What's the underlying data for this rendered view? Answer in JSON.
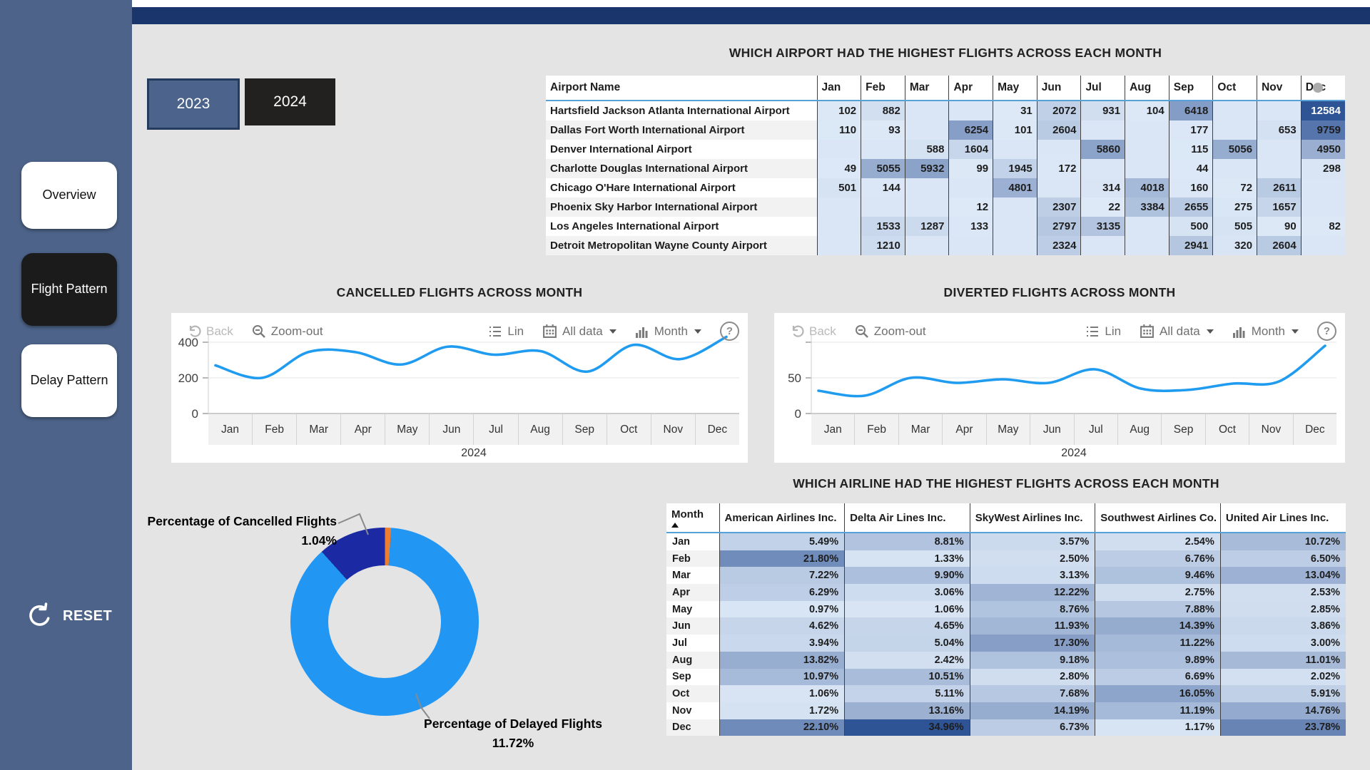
{
  "sidebar": {
    "items": [
      {
        "label": "Overview",
        "selected": false
      },
      {
        "label": "Flight Pattern",
        "selected": true
      },
      {
        "label": "Delay Pattern",
        "selected": false
      }
    ],
    "reset_label": "RESET"
  },
  "filters": {
    "years": [
      "2023",
      "2024"
    ],
    "selected_year": "2023"
  },
  "toolbar": {
    "back": "Back",
    "zoom_out": "Zoom-out",
    "lin": "Lin",
    "all_data": "All data",
    "month": "Month",
    "help": "?"
  },
  "colors": {
    "sidebar": "#4d6389",
    "top_strip": "#1a356b",
    "accent_header_line": "#57a1d9",
    "line": "#1f9bf0",
    "heat_light": "#dde9f7",
    "heat_dark": "#2f5496",
    "donut_main": "#2196f3",
    "donut_delayed": "#1b2aa3",
    "donut_cancelled": "#ed7d31"
  },
  "airport_table": {
    "title": "WHICH AIRPORT HAD THE HIGHEST FLIGHTS ACROSS EACH MONTH",
    "name_header": "Airport Name",
    "months": [
      "Jan",
      "Feb",
      "Mar",
      "Apr",
      "May",
      "Jun",
      "Jul",
      "Aug",
      "Sep",
      "Oct",
      "Nov",
      "Dec"
    ],
    "rows": [
      {
        "name": "Hartsfield Jackson Atlanta International Airport",
        "values": [
          102,
          882,
          null,
          null,
          31,
          2072,
          931,
          104,
          6418,
          null,
          null,
          12584
        ]
      },
      {
        "name": "Dallas Fort Worth International Airport",
        "values": [
          110,
          93,
          null,
          6254,
          101,
          2604,
          null,
          null,
          177,
          null,
          653,
          9759
        ]
      },
      {
        "name": "Denver International Airport",
        "values": [
          null,
          null,
          588,
          1604,
          null,
          null,
          5860,
          null,
          115,
          5056,
          null,
          4950
        ]
      },
      {
        "name": "Charlotte Douglas International Airport",
        "values": [
          49,
          5055,
          5932,
          99,
          1945,
          172,
          null,
          null,
          44,
          null,
          null,
          298
        ]
      },
      {
        "name": "Chicago O'Hare International Airport",
        "values": [
          501,
          144,
          null,
          null,
          4801,
          null,
          314,
          4018,
          160,
          72,
          2611,
          null
        ]
      },
      {
        "name": "Phoenix Sky Harbor International Airport",
        "values": [
          null,
          null,
          null,
          12,
          null,
          2307,
          22,
          3384,
          2655,
          275,
          1657,
          null
        ]
      },
      {
        "name": "Los Angeles International Airport",
        "values": [
          null,
          1533,
          1287,
          133,
          null,
          2797,
          3135,
          null,
          500,
          505,
          90,
          82
        ]
      },
      {
        "name": "Detroit Metropolitan Wayne County Airport",
        "values": [
          null,
          1210,
          null,
          null,
          null,
          2324,
          null,
          null,
          2941,
          320,
          2604,
          null
        ]
      }
    ]
  },
  "airline_table": {
    "title": "WHICH AIRLINE HAD THE HIGHEST FLIGHTS ACROSS EACH MONTH",
    "month_header": "Month",
    "columns": [
      "American Airlines Inc.",
      "Delta Air Lines Inc.",
      "SkyWest Airlines Inc.",
      "Southwest Airlines Co.",
      "United Air Lines Inc."
    ],
    "months": [
      "Jan",
      "Feb",
      "Mar",
      "Apr",
      "May",
      "Jun",
      "Jul",
      "Aug",
      "Sep",
      "Oct",
      "Nov",
      "Dec"
    ],
    "rows": [
      [
        5.49,
        8.81,
        3.57,
        2.54,
        10.72
      ],
      [
        21.8,
        1.33,
        2.5,
        6.76,
        6.5
      ],
      [
        7.22,
        9.9,
        3.13,
        9.46,
        13.04
      ],
      [
        6.29,
        3.06,
        12.22,
        2.75,
        2.53
      ],
      [
        0.97,
        1.06,
        8.76,
        7.88,
        2.85
      ],
      [
        4.62,
        4.65,
        11.93,
        14.39,
        3.86
      ],
      [
        3.94,
        5.04,
        17.3,
        11.22,
        3.0
      ],
      [
        13.82,
        2.42,
        9.18,
        9.89,
        11.01
      ],
      [
        10.97,
        10.51,
        2.8,
        6.69,
        2.02
      ],
      [
        1.06,
        5.11,
        7.68,
        16.05,
        5.91
      ],
      [
        1.72,
        13.16,
        14.19,
        11.19,
        14.76
      ],
      [
        22.1,
        34.96,
        6.73,
        1.17,
        23.78
      ]
    ]
  },
  "chart_data": [
    {
      "type": "line",
      "title": "CANCELLED FLIGHTS ACROSS MONTH",
      "x": [
        "Jan",
        "Feb",
        "Mar",
        "Apr",
        "May",
        "Jun",
        "Jul",
        "Aug",
        "Sep",
        "Oct",
        "Nov",
        "Dec"
      ],
      "values": [
        270,
        200,
        345,
        345,
        275,
        375,
        330,
        350,
        235,
        385,
        305,
        430
      ],
      "xlabel": "2024",
      "ylim": [
        0,
        450
      ],
      "yticks": [
        {
          "v": 0,
          "label": "0"
        },
        {
          "v": 200,
          "label": "200"
        },
        {
          "v": 400,
          "label": "400"
        }
      ],
      "grid": true,
      "legend": "none"
    },
    {
      "type": "line",
      "title": "DIVERTED FLIGHTS ACROSS MONTH",
      "x": [
        "Jan",
        "Feb",
        "Mar",
        "Apr",
        "May",
        "Jun",
        "Jul",
        "Aug",
        "Sep",
        "Oct",
        "Nov",
        "Dec"
      ],
      "values": [
        32,
        25,
        50,
        43,
        48,
        43,
        62,
        35,
        33,
        42,
        45,
        95
      ],
      "xlabel": "2024",
      "ylim": [
        0,
        100
      ],
      "yticks": [
        {
          "v": 0,
          "label": "0"
        },
        {
          "v": 50,
          "label": "50"
        },
        {
          "v": 100,
          "label": ""
        }
      ],
      "grid": true,
      "legend": "none"
    },
    {
      "type": "pie",
      "title": "",
      "values": [
        {
          "label": "Percentage of Delayed Flights",
          "value": 11.72,
          "display": "11.72%",
          "color": "#1b2aa3"
        },
        {
          "label": "Percentage of Cancelled Flights",
          "value": 1.04,
          "display": "1.04%",
          "color": "#ed7d31"
        },
        {
          "label": "",
          "value": 87.24,
          "display": "",
          "color": "#2196f3"
        }
      ]
    }
  ]
}
